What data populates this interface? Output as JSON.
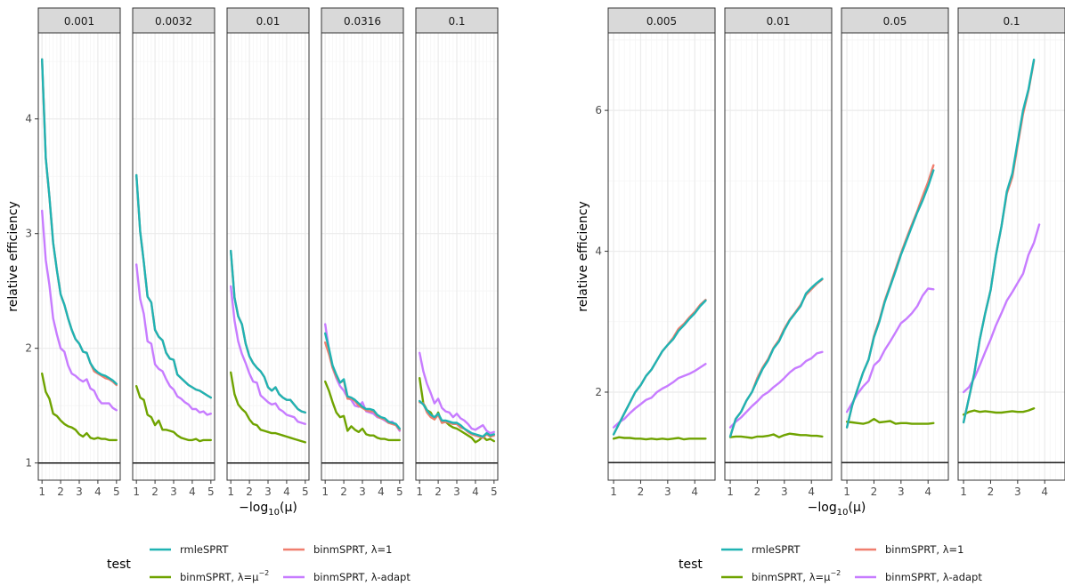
{
  "colors": {
    "rmleSPRT": "#1fb3b3",
    "binm_lambda1": "#f07e6e",
    "binm_lambda_mu": "#6fa300",
    "binm_adapt": "#c77cff",
    "reference_line": "#000000",
    "panel_bg": "#ffffff",
    "grid_major": "#ebebeb",
    "grid_minor": "#f5f5f5",
    "strip_bg": "#d9d9d9",
    "border": "#333333",
    "tick_text": "#4d4d4d"
  },
  "legend": {
    "title": "test",
    "labels": {
      "rmleSPRT": "rmleSPRT",
      "binm_lambda1": "binmSPRT, λ=1",
      "binm_lambda_mu": "binmSPRT, λ=μ",
      "binm_lambda_mu_sup": "−2",
      "binm_adapt": "binmSPRT, λ-adapt"
    }
  },
  "chart_data": [
    {
      "type": "line",
      "ylabel": "relative efficiency",
      "xlabel_prefix": "−log",
      "xlabel_sub": "10",
      "xlabel_suffix": "(μ)",
      "ylim": [
        0.85,
        4.75
      ],
      "yticks": [
        1,
        2,
        3,
        4
      ],
      "xlim": [
        0.8,
        5.2
      ],
      "xticks": [
        1,
        2,
        3,
        4,
        5
      ],
      "reference_line": 1,
      "facet_labels": [
        "0.001",
        "0.0032",
        "0.01",
        "0.0316",
        "0.1"
      ],
      "x": [
        1.0,
        1.2,
        1.4,
        1.6,
        1.8,
        2.0,
        2.2,
        2.4,
        2.6,
        2.8,
        3.0,
        3.2,
        3.4,
        3.6,
        3.8,
        4.0,
        4.2,
        4.4,
        4.6,
        4.8,
        5.0
      ],
      "panels": [
        {
          "rmleSPRT": [
            4.52,
            3.66,
            3.32,
            2.92,
            2.68,
            2.47,
            2.38,
            2.26,
            2.16,
            2.08,
            2.04,
            1.97,
            1.96,
            1.87,
            1.82,
            1.79,
            1.77,
            1.76,
            1.74,
            1.72,
            1.69
          ],
          "binm_lambda1": [
            4.52,
            3.66,
            3.32,
            2.92,
            2.68,
            2.47,
            2.38,
            2.26,
            2.16,
            2.08,
            2.04,
            1.97,
            1.96,
            1.87,
            1.8,
            1.78,
            1.76,
            1.74,
            1.73,
            1.71,
            1.68
          ],
          "binm_lambda_mu": [
            1.78,
            1.62,
            1.56,
            1.43,
            1.41,
            1.37,
            1.34,
            1.32,
            1.31,
            1.29,
            1.25,
            1.23,
            1.26,
            1.22,
            1.21,
            1.22,
            1.21,
            1.21,
            1.2,
            1.2,
            1.2
          ],
          "binm_adapt": [
            3.2,
            2.77,
            2.55,
            2.26,
            2.12,
            2.0,
            1.97,
            1.85,
            1.78,
            1.76,
            1.73,
            1.71,
            1.73,
            1.65,
            1.63,
            1.56,
            1.52,
            1.52,
            1.52,
            1.48,
            1.46
          ]
        },
        {
          "rmleSPRT": [
            3.51,
            3.02,
            2.75,
            2.45,
            2.4,
            2.16,
            2.1,
            2.07,
            1.96,
            1.91,
            1.9,
            1.77,
            1.74,
            1.71,
            1.68,
            1.66,
            1.64,
            1.63,
            1.61,
            1.59,
            1.57
          ],
          "binm_lambda1": [
            3.51,
            3.02,
            2.75,
            2.45,
            2.4,
            2.16,
            2.1,
            2.07,
            1.96,
            1.91,
            1.9,
            1.77,
            1.74,
            1.71,
            1.68,
            1.66,
            1.64,
            1.63,
            1.61,
            1.59,
            1.57
          ],
          "binm_lambda_mu": [
            1.67,
            1.57,
            1.55,
            1.42,
            1.4,
            1.33,
            1.37,
            1.29,
            1.29,
            1.28,
            1.27,
            1.24,
            1.22,
            1.21,
            1.2,
            1.2,
            1.21,
            1.19,
            1.2,
            1.2,
            1.2
          ],
          "binm_adapt": [
            2.73,
            2.43,
            2.3,
            2.06,
            2.04,
            1.86,
            1.82,
            1.8,
            1.73,
            1.67,
            1.64,
            1.58,
            1.56,
            1.53,
            1.51,
            1.47,
            1.47,
            1.44,
            1.45,
            1.42,
            1.43
          ]
        },
        {
          "rmleSPRT": [
            2.85,
            2.44,
            2.28,
            2.21,
            2.04,
            1.93,
            1.87,
            1.83,
            1.8,
            1.75,
            1.66,
            1.63,
            1.66,
            1.6,
            1.57,
            1.55,
            1.55,
            1.51,
            1.47,
            1.45,
            1.44
          ],
          "binm_lambda1": [
            2.85,
            2.44,
            2.28,
            2.21,
            2.04,
            1.93,
            1.87,
            1.83,
            1.8,
            1.75,
            1.66,
            1.63,
            1.66,
            1.6,
            1.57,
            1.55,
            1.55,
            1.51,
            1.47,
            1.45,
            1.44
          ],
          "binm_lambda_mu": [
            1.79,
            1.6,
            1.51,
            1.47,
            1.44,
            1.38,
            1.34,
            1.33,
            1.29,
            1.28,
            1.27,
            1.26,
            1.26,
            1.25,
            1.24,
            1.23,
            1.22,
            1.21,
            1.2,
            1.19,
            1.18
          ],
          "binm_adapt": [
            2.54,
            2.24,
            2.06,
            1.95,
            1.87,
            1.78,
            1.71,
            1.7,
            1.59,
            1.56,
            1.53,
            1.51,
            1.52,
            1.47,
            1.45,
            1.42,
            1.41,
            1.4,
            1.36,
            1.35,
            1.34
          ]
        },
        {
          "rmleSPRT": [
            2.13,
            2.0,
            1.85,
            1.77,
            1.7,
            1.73,
            1.58,
            1.57,
            1.55,
            1.52,
            1.49,
            1.47,
            1.47,
            1.46,
            1.42,
            1.4,
            1.39,
            1.36,
            1.35,
            1.34,
            1.3
          ],
          "binm_lambda1": [
            2.05,
            1.95,
            1.83,
            1.75,
            1.7,
            1.72,
            1.56,
            1.56,
            1.54,
            1.5,
            1.48,
            1.46,
            1.45,
            1.45,
            1.41,
            1.39,
            1.38,
            1.35,
            1.34,
            1.33,
            1.29
          ],
          "binm_lambda_mu": [
            1.71,
            1.63,
            1.53,
            1.44,
            1.4,
            1.41,
            1.28,
            1.32,
            1.29,
            1.27,
            1.3,
            1.25,
            1.24,
            1.24,
            1.22,
            1.21,
            1.21,
            1.2,
            1.2,
            1.2,
            1.2
          ],
          "binm_adapt": [
            2.21,
            1.99,
            1.83,
            1.74,
            1.67,
            1.63,
            1.57,
            1.55,
            1.5,
            1.49,
            1.53,
            1.45,
            1.44,
            1.43,
            1.4,
            1.39,
            1.37,
            1.35,
            1.36,
            1.33,
            1.28
          ]
        },
        {
          "rmleSPRT": [
            1.54,
            1.51,
            1.46,
            1.42,
            1.4,
            1.43,
            1.37,
            1.37,
            1.36,
            1.35,
            1.35,
            1.33,
            1.3,
            1.28,
            1.26,
            1.25,
            1.24,
            1.23,
            1.26,
            1.24,
            1.25
          ],
          "binm_lambda1": [
            1.53,
            1.52,
            1.44,
            1.4,
            1.38,
            1.42,
            1.35,
            1.36,
            1.35,
            1.34,
            1.34,
            1.31,
            1.3,
            1.27,
            1.25,
            1.24,
            1.23,
            1.22,
            1.25,
            1.23,
            1.24
          ],
          "binm_lambda_mu": [
            1.74,
            1.52,
            1.46,
            1.44,
            1.38,
            1.44,
            1.35,
            1.36,
            1.33,
            1.31,
            1.3,
            1.28,
            1.26,
            1.24,
            1.22,
            1.18,
            1.2,
            1.23,
            1.2,
            1.21,
            1.19
          ],
          "binm_adapt": [
            1.96,
            1.8,
            1.69,
            1.61,
            1.52,
            1.56,
            1.48,
            1.45,
            1.44,
            1.4,
            1.43,
            1.39,
            1.37,
            1.34,
            1.3,
            1.29,
            1.31,
            1.33,
            1.28,
            1.26,
            1.27
          ]
        }
      ]
    },
    {
      "type": "line",
      "ylabel": "relative efficiency",
      "xlabel_prefix": "−log",
      "xlabel_sub": "10",
      "xlabel_suffix": "(μ)",
      "ylim": [
        0.75,
        7.1
      ],
      "yticks": [
        2,
        4,
        6
      ],
      "xlim": [
        0.8,
        4.75
      ],
      "xticks": [
        1,
        2,
        3,
        4
      ],
      "reference_line": 1,
      "facet_labels": [
        "0.005",
        "0.01",
        "0.05",
        "0.1"
      ],
      "x": [
        1.0,
        1.2,
        1.4,
        1.6,
        1.8,
        2.0,
        2.2,
        2.4,
        2.6,
        2.8,
        3.0,
        3.2,
        3.4,
        3.6,
        3.8,
        4.0,
        4.2,
        4.4,
        4.6
      ],
      "panels": [
        {
          "rmleSPRT": [
            1.4,
            1.55,
            1.7,
            1.85,
            2.0,
            2.1,
            2.23,
            2.32,
            2.45,
            2.58,
            2.67,
            2.75,
            2.87,
            2.95,
            3.04,
            3.12,
            3.22,
            3.3,
            null
          ],
          "binm_lambda1": [
            1.4,
            1.55,
            1.7,
            1.85,
            2.0,
            2.1,
            2.23,
            2.32,
            2.45,
            2.58,
            2.67,
            2.77,
            2.9,
            2.97,
            3.06,
            3.14,
            3.24,
            3.31,
            null
          ],
          "binm_lambda_mu": [
            1.34,
            1.36,
            1.35,
            1.35,
            1.34,
            1.34,
            1.33,
            1.34,
            1.33,
            1.34,
            1.33,
            1.34,
            1.35,
            1.33,
            1.34,
            1.34,
            1.34,
            1.34,
            null
          ],
          "binm_adapt": [
            1.5,
            1.57,
            1.62,
            1.7,
            1.77,
            1.83,
            1.89,
            1.92,
            2.0,
            2.05,
            2.09,
            2.14,
            2.2,
            2.23,
            2.26,
            2.3,
            2.35,
            2.4,
            null
          ]
        },
        {
          "rmleSPRT": [
            1.37,
            1.62,
            1.72,
            1.88,
            2.0,
            2.17,
            2.33,
            2.45,
            2.62,
            2.72,
            2.88,
            3.02,
            3.12,
            3.22,
            3.4,
            3.48,
            3.55,
            3.61,
            null
          ],
          "binm_lambda1": [
            1.37,
            1.62,
            1.72,
            1.88,
            2.0,
            2.2,
            2.35,
            2.47,
            2.63,
            2.74,
            2.9,
            3.03,
            3.13,
            3.24,
            3.38,
            3.46,
            3.54,
            3.6,
            null
          ],
          "binm_lambda_mu": [
            1.36,
            1.37,
            1.37,
            1.36,
            1.35,
            1.37,
            1.37,
            1.38,
            1.4,
            1.36,
            1.39,
            1.41,
            1.4,
            1.39,
            1.39,
            1.38,
            1.38,
            1.37,
            null
          ],
          "binm_adapt": [
            1.5,
            1.58,
            1.64,
            1.72,
            1.8,
            1.87,
            1.95,
            2.0,
            2.07,
            2.13,
            2.2,
            2.28,
            2.34,
            2.37,
            2.44,
            2.48,
            2.55,
            2.57,
            null
          ]
        },
        {
          "rmleSPRT": [
            1.5,
            1.82,
            2.05,
            2.28,
            2.46,
            2.78,
            3.0,
            3.28,
            3.5,
            3.72,
            3.95,
            4.15,
            4.35,
            4.55,
            4.72,
            4.92,
            5.15,
            null,
            null
          ],
          "binm_lambda1": [
            1.5,
            1.82,
            2.05,
            2.28,
            2.46,
            2.8,
            3.02,
            3.3,
            3.52,
            3.75,
            3.97,
            4.18,
            4.38,
            4.57,
            4.78,
            4.98,
            5.22,
            null,
            null
          ],
          "binm_lambda_mu": [
            1.58,
            1.57,
            1.56,
            1.55,
            1.57,
            1.62,
            1.57,
            1.58,
            1.59,
            1.55,
            1.56,
            1.56,
            1.55,
            1.55,
            1.55,
            1.55,
            1.56,
            null,
            null
          ],
          "binm_adapt": [
            1.72,
            1.85,
            1.98,
            2.08,
            2.16,
            2.38,
            2.45,
            2.6,
            2.72,
            2.85,
            2.98,
            3.04,
            3.12,
            3.22,
            3.37,
            3.47,
            3.46,
            null,
            null
          ]
        },
        {
          "rmleSPRT": [
            1.57,
            1.92,
            2.27,
            2.75,
            3.12,
            3.45,
            3.95,
            4.35,
            4.85,
            5.1,
            5.55,
            6.0,
            6.3,
            6.72,
            null,
            null,
            null,
            null,
            null
          ],
          "binm_lambda1": [
            1.57,
            1.92,
            2.27,
            2.75,
            3.12,
            3.45,
            3.95,
            4.35,
            4.82,
            5.05,
            5.5,
            5.95,
            6.28,
            6.7,
            null,
            null,
            null,
            null,
            null
          ],
          "binm_lambda_mu": [
            1.68,
            1.72,
            1.74,
            1.72,
            1.73,
            1.72,
            1.71,
            1.71,
            1.72,
            1.73,
            1.72,
            1.72,
            1.74,
            1.77,
            null,
            null,
            null,
            null,
            null
          ],
          "binm_adapt": [
            2.0,
            2.07,
            2.2,
            2.38,
            2.57,
            2.75,
            2.95,
            3.12,
            3.3,
            3.42,
            3.55,
            3.68,
            3.95,
            4.12,
            4.38,
            null,
            null,
            null,
            null
          ]
        }
      ]
    }
  ]
}
